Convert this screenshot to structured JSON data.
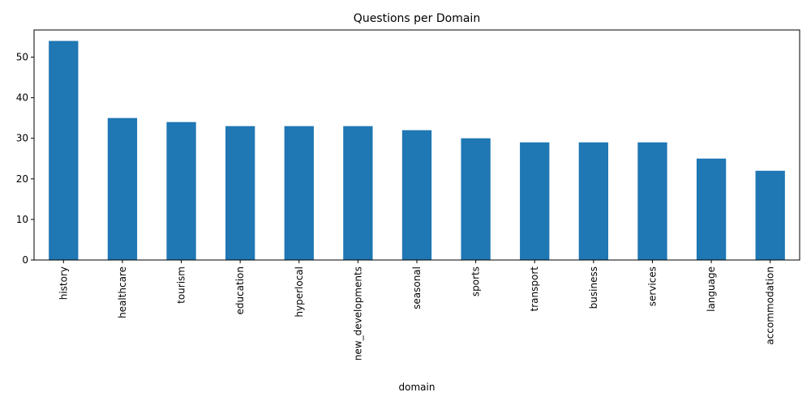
{
  "chart_data": {
    "type": "bar",
    "title": "Questions per Domain",
    "xlabel": "domain",
    "ylabel": "",
    "categories": [
      "history",
      "healthcare",
      "tourism",
      "education",
      "hyperlocal",
      "new_developments",
      "seasonal",
      "sports",
      "transport",
      "business",
      "services",
      "language",
      "accommodation"
    ],
    "values": [
      54,
      35,
      34,
      33,
      33,
      33,
      32,
      30,
      29,
      29,
      29,
      25,
      22
    ],
    "ylim": [
      0,
      56.7
    ],
    "yticks": [
      0,
      10,
      20,
      30,
      40,
      50
    ],
    "bar_color": "#1f77b4",
    "grid": false,
    "legend": "none"
  }
}
